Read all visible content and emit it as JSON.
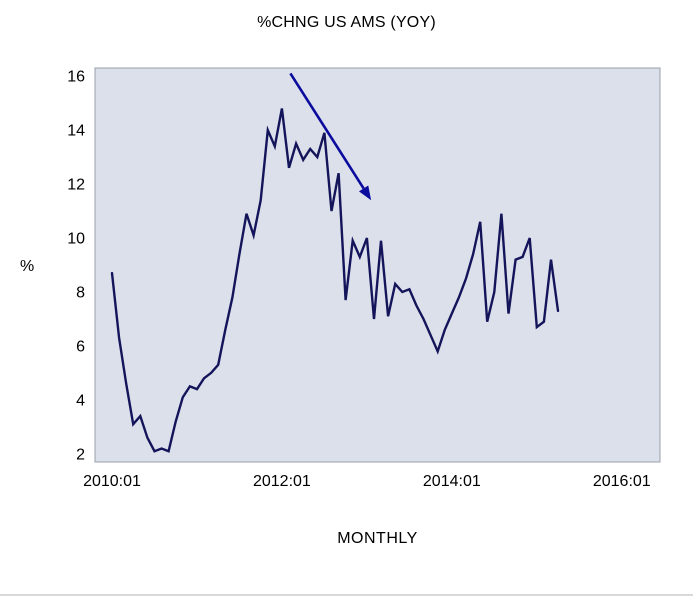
{
  "chart_data": {
    "type": "line",
    "title": "%CHNG US AMS (YOY)",
    "xlabel": "MONTHLY",
    "ylabel": "%",
    "ylim": [
      1.7,
      16.3
    ],
    "xlim_years": [
      2009.8,
      2016.45
    ],
    "yticks": [
      2,
      4,
      6,
      8,
      10,
      12,
      14,
      16
    ],
    "xticks": [
      {
        "label": "2010:01",
        "year": 2010
      },
      {
        "label": "2012:01",
        "year": 2012
      },
      {
        "label": "2014:01",
        "year": 2014
      },
      {
        "label": "2016:01",
        "year": 2016
      }
    ],
    "grid": false,
    "legend": "none",
    "x": [
      "2010:01",
      "2010:02",
      "2010:03",
      "2010:04",
      "2010:05",
      "2010:06",
      "2010:07",
      "2010:08",
      "2010:09",
      "2010:10",
      "2010:11",
      "2010:12",
      "2011:01",
      "2011:02",
      "2011:03",
      "2011:04",
      "2011:05",
      "2011:06",
      "2011:07",
      "2011:08",
      "2011:09",
      "2011:10",
      "2011:11",
      "2011:12",
      "2012:01",
      "2012:02",
      "2012:03",
      "2012:04",
      "2012:05",
      "2012:06",
      "2012:07",
      "2012:08",
      "2012:09",
      "2012:10",
      "2012:11",
      "2012:12",
      "2013:01",
      "2013:02",
      "2013:03",
      "2013:04",
      "2013:05",
      "2013:06",
      "2013:07",
      "2013:08",
      "2013:09",
      "2013:10",
      "2013:11",
      "2013:12",
      "2014:01",
      "2014:02",
      "2014:03",
      "2014:04",
      "2014:05",
      "2014:06",
      "2014:07",
      "2014:08",
      "2014:09",
      "2014:10",
      "2014:11",
      "2014:12",
      "2015:01",
      "2015:02",
      "2015:03",
      "2015:04"
    ],
    "series": [
      {
        "name": "%CHNG US AMS (YOY)",
        "frequency": "monthly",
        "values": [
          8.7,
          6.3,
          4.6,
          3.1,
          3.4,
          2.6,
          2.1,
          2.2,
          2.1,
          3.2,
          4.1,
          4.5,
          4.4,
          4.8,
          5.0,
          5.3,
          6.6,
          7.8,
          9.4,
          10.9,
          10.1,
          11.4,
          14.0,
          13.4,
          14.8,
          12.6,
          13.5,
          12.9,
          13.3,
          13.0,
          13.9,
          11.0,
          12.4,
          7.7,
          9.9,
          9.3,
          10.0,
          7.0,
          9.9,
          7.1,
          8.3,
          8.0,
          8.1,
          7.5,
          7.0,
          6.4,
          5.8,
          6.6,
          7.2,
          7.8,
          8.5,
          9.4,
          10.6,
          6.9,
          8.0,
          10.9,
          7.2,
          9.2,
          9.3,
          10.0,
          6.7,
          6.9,
          9.2,
          7.3
        ]
      }
    ],
    "annotation_arrow": {
      "from_year": 2012.1,
      "from_value": 16.1,
      "to_year": 2013.05,
      "to_value": 11.4
    },
    "colors": {
      "line": "#14145a",
      "arrow": "#0b0b9e",
      "plot_bg": "#dbe0ea",
      "plot_border": "#9aa0a8",
      "text": "#000000"
    }
  }
}
